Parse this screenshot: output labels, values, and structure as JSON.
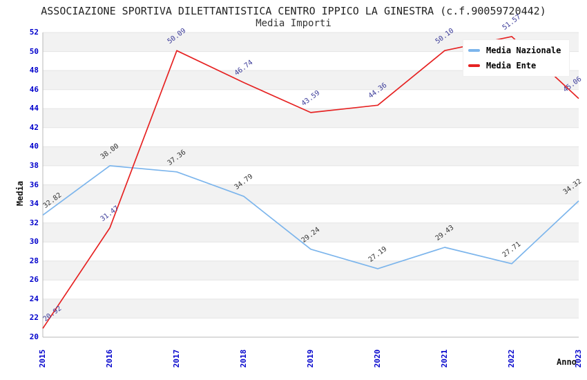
{
  "chart_data": {
    "type": "line",
    "title": "ASSOCIAZIONE SPORTIVA DILETTANTISTICA CENTRO IPPICO LA GINESTRA (c.f.90059720442)",
    "subtitle": "Media Importi",
    "xlabel": "Anno",
    "ylabel": "Media",
    "categories": [
      "2015",
      "2016",
      "2017",
      "2018",
      "2019",
      "2020",
      "2021",
      "2022",
      "2023"
    ],
    "series": [
      {
        "name": "Media Nazionale",
        "color": "#7cb5ec",
        "label_color": "#333333",
        "values": [
          32.82,
          38.0,
          37.36,
          34.79,
          29.24,
          27.19,
          29.43,
          27.71,
          34.32
        ],
        "labels": [
          "32.82",
          "38.00",
          "37.36",
          "34.79",
          "29.24",
          "27.19",
          "29.43",
          "27.71",
          "34.32"
        ]
      },
      {
        "name": "Media Ente",
        "color": "#e62222",
        "label_color": "#3b3b99",
        "values": [
          20.92,
          31.47,
          50.09,
          46.74,
          43.59,
          44.36,
          50.1,
          51.57,
          45.06
        ],
        "labels": [
          "20.92",
          "31.47",
          "50.09",
          "46.74",
          "43.59",
          "44.36",
          "50.10",
          "51.57",
          "45.06"
        ]
      }
    ],
    "ylim": [
      20,
      52
    ],
    "ytick_step": 2,
    "grid": "striped-horizontal-bands",
    "legend_position": "top-right",
    "colors": {
      "band": "#f2f2f2",
      "band_alt": "#ffffff",
      "gridline": "#e4e4e4",
      "axis_line": "#b8b8b8",
      "tick_label": "#0000cc",
      "title_text": "#222222"
    }
  }
}
